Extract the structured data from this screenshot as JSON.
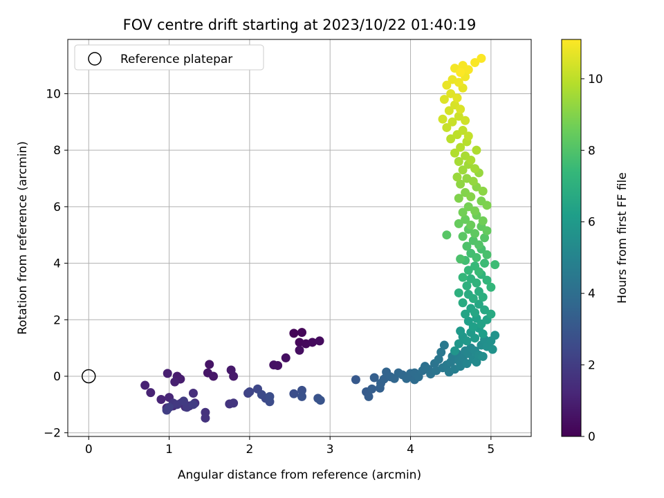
{
  "chart_data": {
    "type": "scatter",
    "title": "FOV centre drift starting at 2023/10/22 01:40:19",
    "xlabel": "Angular distance from reference (arcmin)",
    "ylabel": "Rotation from reference (arcmin)",
    "xlim": [
      -0.26,
      5.5
    ],
    "ylim": [
      -2.13,
      11.92
    ],
    "xticks": [
      0,
      1,
      2,
      3,
      4,
      5
    ],
    "yticks": [
      -2,
      0,
      2,
      4,
      6,
      8,
      10
    ],
    "grid": true,
    "legend": {
      "position": "top-left",
      "entries": [
        "Reference platepar"
      ]
    },
    "reference": {
      "x": 0,
      "y": 0
    },
    "colorbar": {
      "label": "Hours from first FF file",
      "min": 0,
      "max": 11.1,
      "ticks": [
        0,
        2,
        4,
        6,
        8,
        10
      ],
      "colormap": "viridis"
    },
    "colormap": [
      "#440154",
      "#482878",
      "#3e4989",
      "#31688e",
      "#26828e",
      "#1f9e89",
      "#35b779",
      "#6ece58",
      "#b5de2b",
      "#fde725"
    ],
    "points": [
      [
        2.55,
        1.52,
        0.1
      ],
      [
        2.65,
        1.55,
        0.15
      ],
      [
        2.62,
        1.2,
        0.2
      ],
      [
        2.7,
        1.15,
        0.25
      ],
      [
        2.78,
        1.2,
        0.3
      ],
      [
        2.87,
        1.25,
        0.35
      ],
      [
        2.62,
        0.92,
        0.4
      ],
      [
        2.45,
        0.65,
        0.45
      ],
      [
        2.35,
        0.38,
        0.5
      ],
      [
        2.3,
        0.4,
        0.55
      ],
      [
        1.5,
        0.42,
        0.6
      ],
      [
        1.48,
        0.12,
        0.65
      ],
      [
        1.55,
        0.0,
        0.7
      ],
      [
        1.77,
        0.22,
        0.75
      ],
      [
        1.8,
        0.0,
        0.8
      ],
      [
        1.1,
        0.0,
        0.85
      ],
      [
        1.14,
        -0.1,
        0.9
      ],
      [
        0.98,
        0.1,
        0.95
      ],
      [
        1.07,
        -0.2,
        1.0
      ],
      [
        0.7,
        -0.32,
        1.05
      ],
      [
        0.77,
        -0.58,
        1.1
      ],
      [
        0.9,
        -0.82,
        1.15
      ],
      [
        1.0,
        -0.75,
        1.2
      ],
      [
        0.97,
        -1.12,
        1.25
      ],
      [
        1.05,
        -1.05,
        1.3
      ],
      [
        1.15,
        -0.95,
        1.35
      ],
      [
        1.2,
        -1.08,
        1.4
      ],
      [
        1.3,
        -0.6,
        1.45
      ],
      [
        1.25,
        -1.05,
        1.5
      ],
      [
        1.32,
        -0.95,
        1.55
      ],
      [
        1.45,
        -1.28,
        1.6
      ],
      [
        1.45,
        -1.48,
        1.65
      ],
      [
        1.75,
        -0.98,
        1.7
      ],
      [
        1.8,
        -0.95,
        1.75
      ],
      [
        1.05,
        -0.95,
        1.8
      ],
      [
        1.1,
        -1.0,
        1.85
      ],
      [
        1.22,
        -1.1,
        1.9
      ],
      [
        1.18,
        -0.88,
        1.95
      ],
      [
        1.3,
        -1.0,
        2.0
      ],
      [
        0.97,
        -1.2,
        2.05
      ],
      [
        1.0,
        -1.1,
        2.1
      ],
      [
        1.98,
        -0.6,
        2.2
      ],
      [
        2.0,
        -0.55,
        2.3
      ],
      [
        2.1,
        -0.45,
        2.4
      ],
      [
        2.2,
        -0.78,
        2.5
      ],
      [
        2.15,
        -0.65,
        2.55
      ],
      [
        2.25,
        -0.9,
        2.6
      ],
      [
        2.25,
        -0.72,
        2.65
      ],
      [
        2.55,
        -0.62,
        2.7
      ],
      [
        2.65,
        -0.5,
        2.75
      ],
      [
        2.65,
        -0.72,
        2.8
      ],
      [
        2.85,
        -0.78,
        2.85
      ],
      [
        2.88,
        -0.85,
        2.9
      ],
      [
        3.32,
        -0.12,
        3.1
      ],
      [
        3.45,
        -0.55,
        3.2
      ],
      [
        3.48,
        -0.72,
        3.25
      ],
      [
        3.52,
        -0.45,
        3.3
      ],
      [
        3.55,
        -0.05,
        3.35
      ],
      [
        3.62,
        -0.42,
        3.4
      ],
      [
        3.63,
        -0.25,
        3.45
      ],
      [
        3.67,
        -0.1,
        3.5
      ],
      [
        3.7,
        0.15,
        3.55
      ],
      [
        3.75,
        -0.02,
        3.6
      ],
      [
        3.8,
        -0.08,
        3.65
      ],
      [
        3.85,
        0.12,
        3.7
      ],
      [
        3.9,
        0.05,
        3.75
      ],
      [
        3.95,
        -0.08,
        3.8
      ],
      [
        4.0,
        0.1,
        3.85
      ],
      [
        4.05,
        -0.12,
        3.9
      ],
      [
        4.05,
        0.12,
        3.95
      ],
      [
        4.1,
        -0.02,
        4.0
      ],
      [
        4.15,
        0.2,
        4.05
      ],
      [
        4.18,
        0.35,
        4.1
      ],
      [
        4.22,
        0.25,
        4.15
      ],
      [
        4.25,
        0.08,
        4.2
      ],
      [
        4.3,
        0.45,
        4.25
      ],
      [
        4.32,
        0.2,
        4.3
      ],
      [
        4.35,
        0.6,
        4.35
      ],
      [
        4.38,
        0.85,
        4.4
      ],
      [
        4.4,
        0.3,
        4.45
      ],
      [
        4.42,
        1.1,
        4.5
      ],
      [
        4.45,
        0.4,
        4.55
      ],
      [
        4.48,
        0.15,
        4.6
      ],
      [
        4.5,
        0.5,
        4.65
      ],
      [
        4.52,
        0.7,
        4.7
      ],
      [
        4.55,
        0.25,
        4.75
      ],
      [
        4.58,
        0.8,
        4.8
      ],
      [
        4.6,
        0.55,
        4.85
      ],
      [
        4.62,
        0.35,
        4.9
      ],
      [
        4.65,
        0.65,
        4.95
      ],
      [
        4.68,
        0.9,
        5.0
      ],
      [
        4.7,
        0.45,
        5.05
      ],
      [
        4.72,
        0.8,
        5.1
      ],
      [
        4.75,
        1.0,
        5.15
      ],
      [
        4.78,
        0.6,
        5.2
      ],
      [
        4.8,
        0.9,
        5.25
      ],
      [
        4.82,
        0.5,
        5.3
      ],
      [
        4.85,
        0.75,
        5.35
      ],
      [
        4.88,
        1.1,
        5.4
      ],
      [
        4.9,
        0.7,
        5.45
      ],
      [
        4.92,
        1.3,
        5.5
      ],
      [
        4.95,
        1.05,
        5.55
      ],
      [
        5.0,
        1.25,
        5.6
      ],
      [
        5.02,
        0.95,
        5.65
      ],
      [
        5.05,
        1.45,
        5.7
      ],
      [
        4.55,
        0.9,
        5.75
      ],
      [
        4.6,
        1.15,
        5.8
      ],
      [
        4.65,
        1.4,
        5.85
      ],
      [
        4.7,
        1.25,
        5.9
      ],
      [
        4.62,
        1.6,
        5.95
      ],
      [
        4.75,
        1.55,
        6.0
      ],
      [
        4.8,
        1.35,
        6.05
      ],
      [
        4.85,
        1.7,
        6.1
      ],
      [
        4.9,
        1.5,
        6.15
      ],
      [
        4.72,
        1.95,
        6.2
      ],
      [
        4.78,
        1.75,
        6.25
      ],
      [
        4.82,
        2.05,
        6.3
      ],
      [
        4.88,
        1.85,
        6.35
      ],
      [
        4.95,
        2.0,
        6.4
      ],
      [
        4.68,
        2.2,
        6.45
      ],
      [
        4.75,
        2.4,
        6.5
      ],
      [
        4.8,
        2.25,
        6.55
      ],
      [
        4.85,
        2.55,
        6.6
      ],
      [
        4.92,
        2.35,
        6.65
      ],
      [
        5.0,
        2.2,
        6.7
      ],
      [
        4.65,
        2.6,
        6.75
      ],
      [
        4.72,
        2.9,
        6.8
      ],
      [
        4.78,
        2.75,
        6.85
      ],
      [
        4.85,
        3.0,
        6.9
      ],
      [
        4.9,
        2.8,
        6.95
      ],
      [
        4.6,
        2.95,
        7.0
      ],
      [
        4.7,
        3.2,
        7.05
      ],
      [
        4.75,
        3.45,
        7.1
      ],
      [
        4.82,
        3.3,
        7.15
      ],
      [
        4.88,
        3.6,
        7.2
      ],
      [
        4.95,
        3.4,
        7.25
      ],
      [
        5.0,
        3.15,
        7.3
      ],
      [
        4.65,
        3.5,
        7.35
      ],
      [
        4.72,
        3.75,
        7.4
      ],
      [
        4.8,
        3.9,
        7.45
      ],
      [
        4.85,
        3.7,
        7.5
      ],
      [
        4.92,
        4.0,
        7.55
      ],
      [
        5.05,
        3.95,
        7.6
      ],
      [
        4.68,
        4.1,
        7.65
      ],
      [
        4.75,
        4.35,
        7.7
      ],
      [
        4.82,
        4.2,
        7.75
      ],
      [
        4.88,
        4.5,
        7.8
      ],
      [
        4.95,
        4.3,
        7.85
      ],
      [
        4.62,
        4.15,
        7.9
      ],
      [
        4.7,
        4.6,
        7.95
      ],
      [
        4.78,
        4.8,
        8.0
      ],
      [
        4.85,
        4.65,
        8.05
      ],
      [
        4.92,
        4.9,
        8.1
      ],
      [
        4.45,
        5.0,
        8.15
      ],
      [
        4.65,
        4.95,
        8.2
      ],
      [
        4.72,
        5.2,
        8.25
      ],
      [
        4.8,
        5.05,
        8.3
      ],
      [
        4.88,
        5.3,
        8.35
      ],
      [
        4.95,
        5.15,
        8.4
      ],
      [
        4.6,
        5.4,
        8.45
      ],
      [
        4.68,
        5.55,
        8.5
      ],
      [
        4.75,
        5.35,
        8.55
      ],
      [
        4.82,
        5.7,
        8.6
      ],
      [
        4.9,
        5.5,
        8.65
      ],
      [
        4.65,
        5.8,
        8.7
      ],
      [
        4.72,
        6.0,
        8.75
      ],
      [
        4.8,
        5.85,
        8.8
      ],
      [
        4.88,
        6.2,
        8.85
      ],
      [
        4.95,
        6.05,
        8.9
      ],
      [
        4.6,
        6.3,
        8.95
      ],
      [
        4.68,
        6.5,
        9.0
      ],
      [
        4.75,
        6.35,
        9.05
      ],
      [
        4.82,
        6.7,
        9.1
      ],
      [
        4.9,
        6.55,
        9.15
      ],
      [
        4.62,
        6.8,
        9.2
      ],
      [
        4.7,
        7.0,
        9.25
      ],
      [
        4.78,
        6.9,
        9.3
      ],
      [
        4.85,
        7.2,
        9.35
      ],
      [
        4.58,
        7.05,
        9.4
      ],
      [
        4.65,
        7.3,
        9.45
      ],
      [
        4.72,
        7.5,
        9.5
      ],
      [
        4.8,
        7.35,
        9.55
      ],
      [
        4.6,
        7.6,
        9.6
      ],
      [
        4.68,
        7.8,
        9.65
      ],
      [
        4.75,
        7.65,
        9.7
      ],
      [
        4.82,
        8.0,
        9.75
      ],
      [
        4.55,
        7.9,
        9.8
      ],
      [
        4.62,
        8.1,
        9.85
      ],
      [
        4.7,
        8.3,
        9.9
      ],
      [
        4.5,
        8.4,
        9.95
      ],
      [
        4.58,
        8.55,
        10.0
      ],
      [
        4.65,
        8.7,
        10.05
      ],
      [
        4.72,
        8.5,
        10.1
      ],
      [
        4.45,
        8.8,
        10.15
      ],
      [
        4.52,
        9.0,
        10.2
      ],
      [
        4.6,
        9.2,
        10.25
      ],
      [
        4.68,
        9.05,
        10.3
      ],
      [
        4.4,
        9.1,
        10.35
      ],
      [
        4.48,
        9.4,
        10.4
      ],
      [
        4.55,
        9.6,
        10.45
      ],
      [
        4.62,
        9.45,
        10.5
      ],
      [
        4.42,
        9.8,
        10.55
      ],
      [
        4.5,
        10.0,
        10.6
      ],
      [
        4.58,
        9.85,
        10.65
      ],
      [
        4.65,
        10.2,
        10.7
      ],
      [
        4.45,
        10.3,
        10.75
      ],
      [
        4.52,
        10.5,
        10.8
      ],
      [
        4.6,
        10.4,
        10.85
      ],
      [
        4.68,
        10.6,
        10.9
      ],
      [
        4.55,
        10.9,
        10.95
      ],
      [
        4.65,
        11.0,
        11.0
      ],
      [
        4.72,
        10.85,
        11.02
      ],
      [
        4.8,
        11.1,
        11.04
      ],
      [
        4.88,
        11.25,
        11.06
      ],
      [
        4.62,
        10.75,
        11.08
      ]
    ]
  }
}
